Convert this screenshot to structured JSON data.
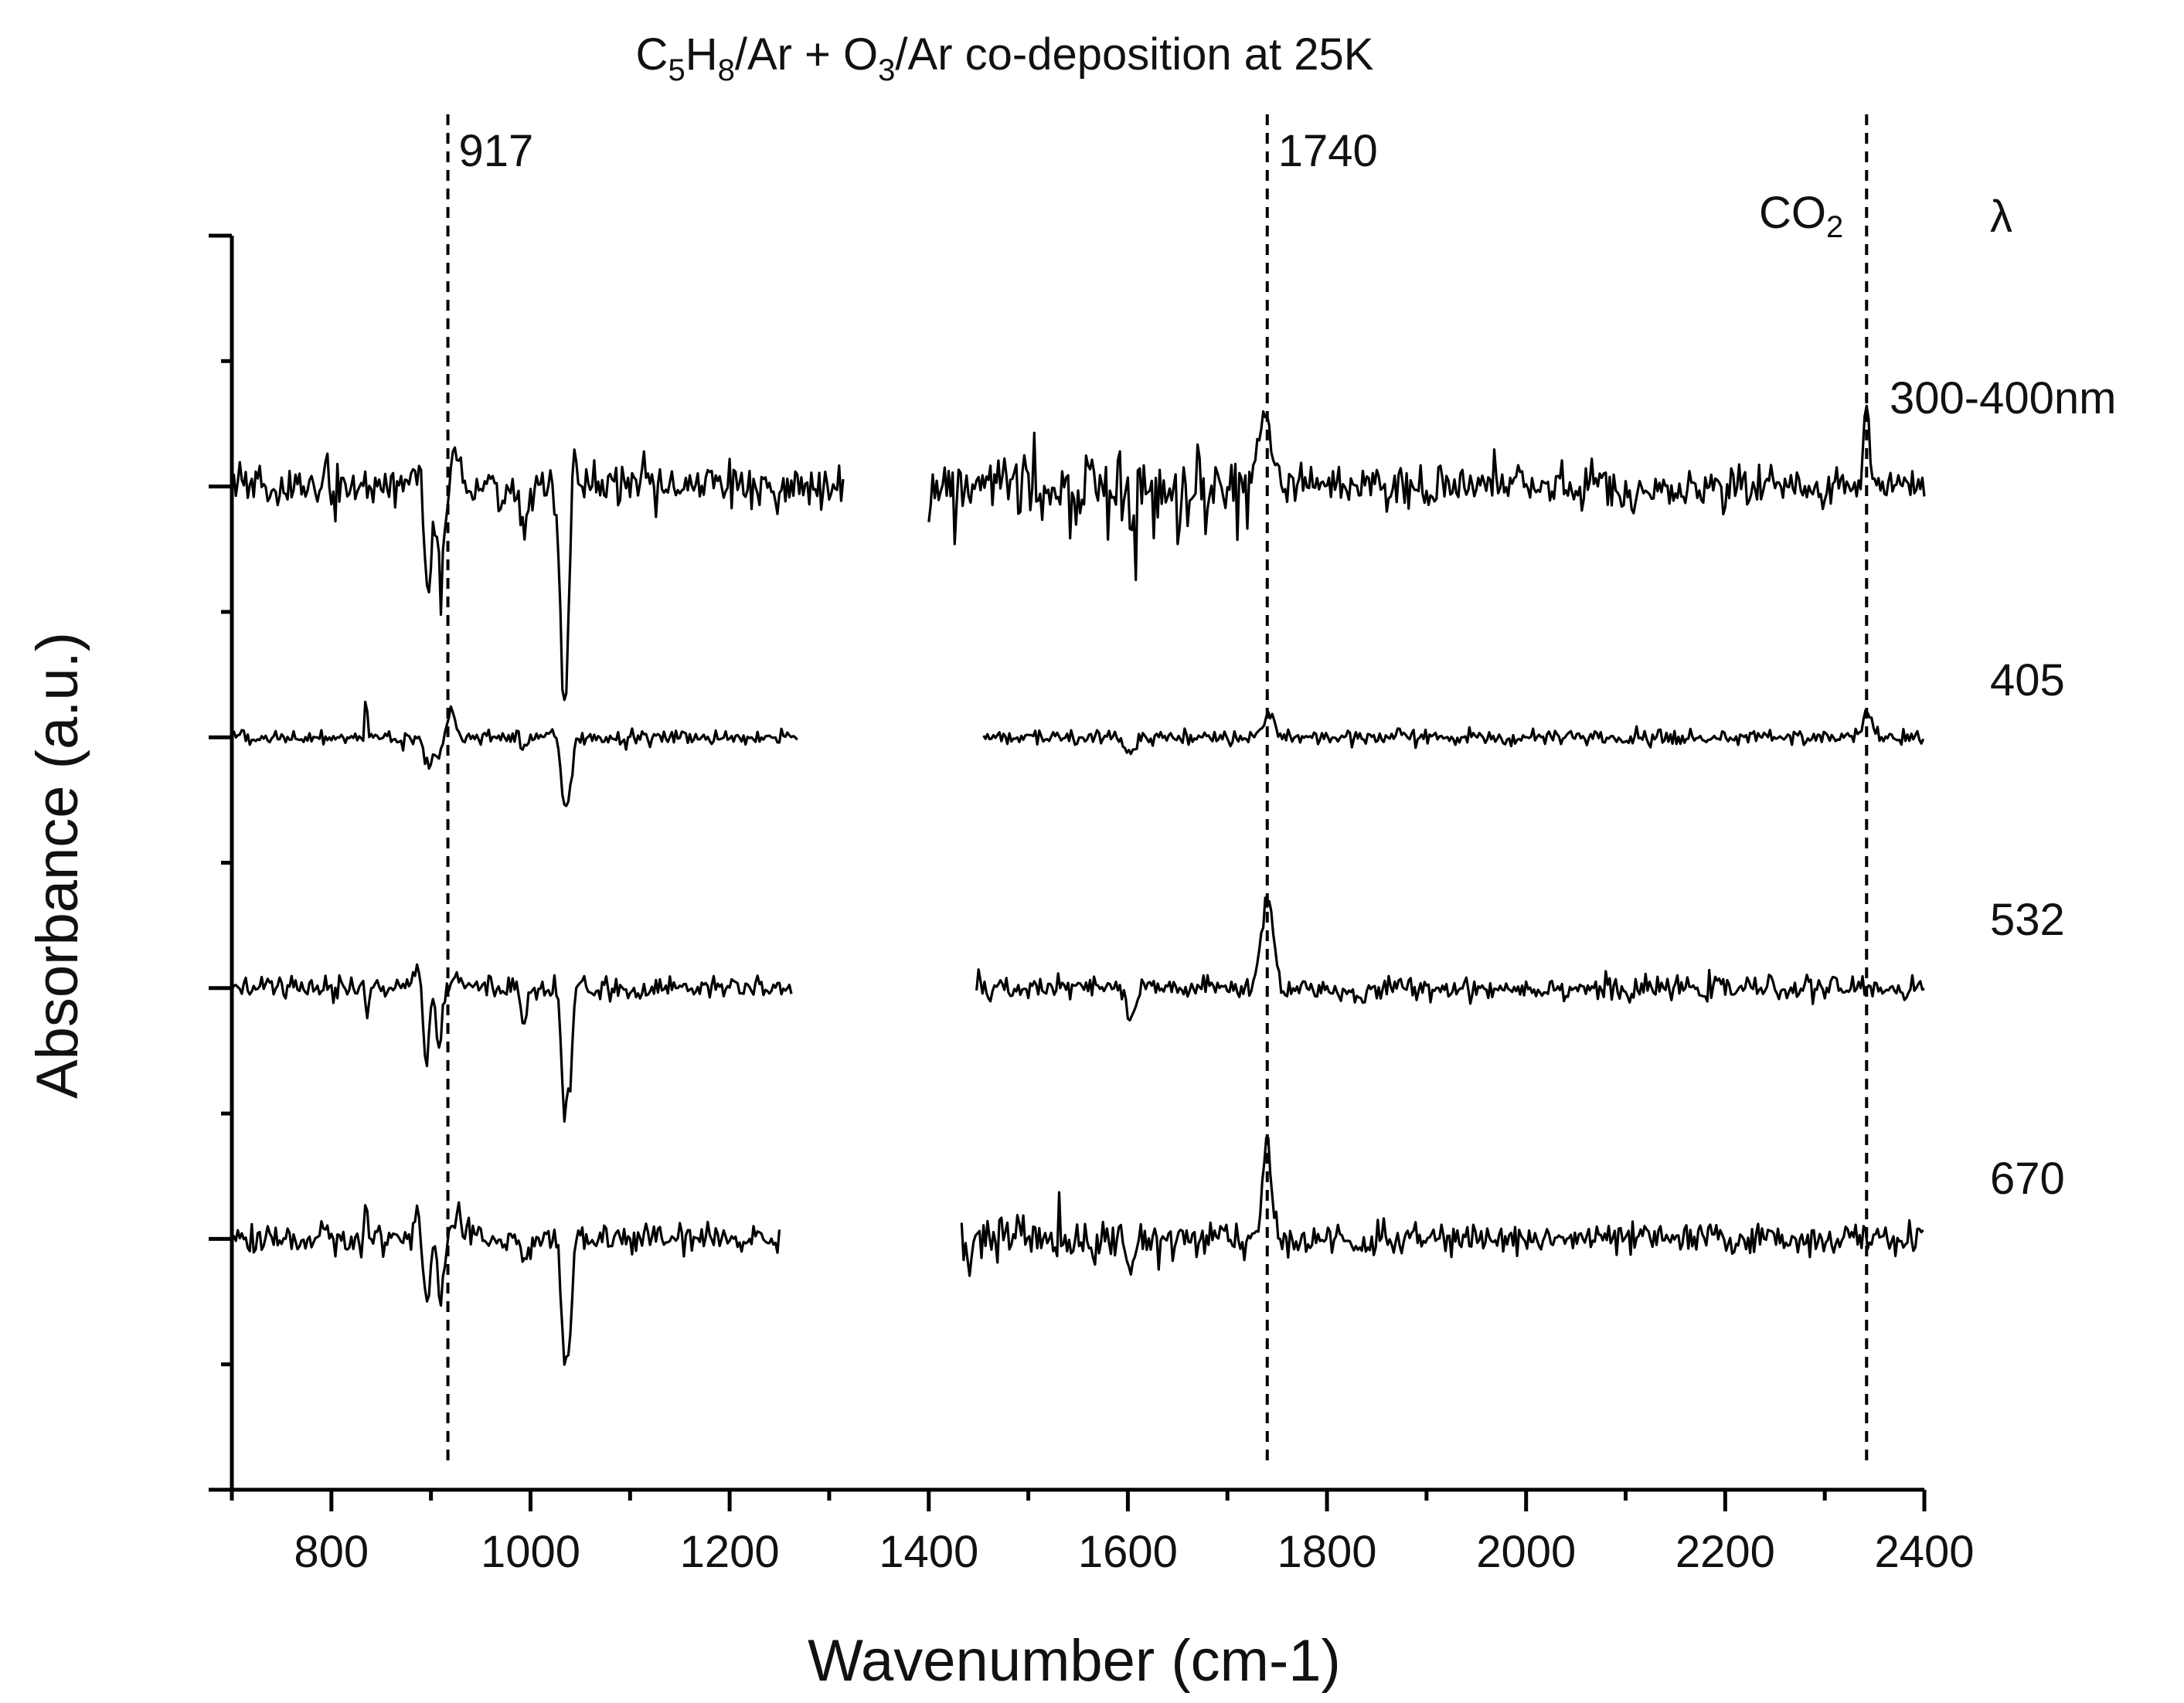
{
  "chart_data": {
    "type": "line",
    "title": {
      "segments": [
        {
          "text": "C",
          "sub": false
        },
        {
          "text": "5",
          "sub": true
        },
        {
          "text": "H",
          "sub": false
        },
        {
          "text": "8",
          "sub": true
        },
        {
          "text": "/Ar + O",
          "sub": false
        },
        {
          "text": "3",
          "sub": true
        },
        {
          "text": "/Ar co-deposition at 25K",
          "sub": false
        }
      ]
    },
    "xlabel": "Wavenumber (cm-1)",
    "ylabel": "Absorbance (a.u.)",
    "xlim": [
      700,
      2400
    ],
    "x_ticks": [
      800,
      1000,
      1200,
      1400,
      1600,
      1800,
      2000,
      2200,
      2400
    ],
    "x_tick_labels": [
      "800",
      "1000",
      "1200",
      "1400",
      "1600",
      "1800",
      "2000",
      "2200",
      "2400"
    ],
    "x_minor_step": 100,
    "ylim": [
      0,
      10
    ],
    "y_major_ticks": [
      0,
      2,
      4,
      6,
      8,
      10
    ],
    "y_minor_ticks": [
      1,
      3,
      5,
      7,
      9
    ],
    "reference_lines": [
      {
        "x": 917,
        "label": "917",
        "label_side": "right"
      },
      {
        "x": 1740,
        "label": "1740",
        "label_side": "right"
      },
      {
        "x": 2342,
        "label": "CO₂",
        "label_parts": [
          {
            "text": "CO",
            "sub": false
          },
          {
            "text": "2",
            "sub": true
          }
        ],
        "label_side": "left"
      }
    ],
    "lambda_header": "λ",
    "noise_seed": 7,
    "series": [
      {
        "name": "300-400nm",
        "baseline": 8,
        "noise": 0.085,
        "segments": [
          [
            700,
            1315
          ],
          [
            1400,
            2400
          ]
        ],
        "extra_noise_range": [
          1400,
          1720,
          0.12
        ],
        "features": [
          {
            "x": 795,
            "amp": 0.35,
            "w": 1
          },
          {
            "x": 888,
            "amp": 0.25,
            "w": 5
          },
          {
            "x": 897,
            "amp": -0.95,
            "w": 3.5
          },
          {
            "x": 910,
            "amp": -0.85,
            "w": 3.5
          },
          {
            "x": 925,
            "amp": 0.28,
            "w": 5
          },
          {
            "x": 993,
            "amp": -0.35,
            "w": 4
          },
          {
            "x": 1034,
            "amp": -1.8,
            "w": 4
          },
          {
            "x": 1044,
            "amp": 0.45,
            "w": 2
          },
          {
            "x": 1603,
            "amp": -0.3,
            "w": 3
          },
          {
            "x": 1652,
            "amp": -0.55,
            "w": 1.5
          },
          {
            "x": 1738,
            "amp": 0.55,
            "w": 7
          },
          {
            "x": 2105,
            "amp": -0.12,
            "w": 8
          },
          {
            "x": 2342,
            "amp": 0.72,
            "w": 2.5
          }
        ]
      },
      {
        "name": "405",
        "baseline": 6,
        "noise": 0.03,
        "segments": [
          [
            700,
            1268
          ],
          [
            1455,
            2400
          ]
        ],
        "features": [
          {
            "x": 835,
            "amp": 0.42,
            "w": 1
          },
          {
            "x": 897,
            "amp": -0.22,
            "w": 4
          },
          {
            "x": 907,
            "amp": -0.15,
            "w": 4
          },
          {
            "x": 920,
            "amp": 0.25,
            "w": 4
          },
          {
            "x": 993,
            "amp": -0.1,
            "w": 3
          },
          {
            "x": 1034,
            "amp": -0.55,
            "w": 3
          },
          {
            "x": 1040,
            "amp": -0.35,
            "w": 2.5
          },
          {
            "x": 1603,
            "amp": -0.13,
            "w": 4
          },
          {
            "x": 1742,
            "amp": 0.18,
            "w": 6
          },
          {
            "x": 2105,
            "amp": -0.03,
            "w": 8
          },
          {
            "x": 2342,
            "amp": 0.2,
            "w": 4
          }
        ]
      },
      {
        "name": "532",
        "baseline": 4,
        "noise": 0.045,
        "segments": [
          [
            700,
            1262
          ],
          [
            1448,
            2400
          ]
        ],
        "features": [
          {
            "x": 835,
            "amp": -0.22,
            "w": 1.5
          },
          {
            "x": 887,
            "amp": 0.22,
            "w": 4
          },
          {
            "x": 895,
            "amp": -0.65,
            "w": 3
          },
          {
            "x": 908,
            "amp": -0.5,
            "w": 3
          },
          {
            "x": 925,
            "amp": 0.12,
            "w": 5
          },
          {
            "x": 993,
            "amp": -0.28,
            "w": 3
          },
          {
            "x": 1034,
            "amp": -0.95,
            "w": 3
          },
          {
            "x": 1040,
            "amp": -0.6,
            "w": 2.5
          },
          {
            "x": 1462,
            "amp": -0.12,
            "w": 2
          },
          {
            "x": 1603,
            "amp": -0.28,
            "w": 4
          },
          {
            "x": 1740,
            "amp": 0.7,
            "w": 6
          },
          {
            "x": 1828,
            "amp": -0.1,
            "w": 10
          },
          {
            "x": 2105,
            "amp": -0.06,
            "w": 6
          }
        ]
      },
      {
        "name": "670",
        "baseline": 2,
        "noise": 0.06,
        "segments": [
          [
            700,
            1250
          ],
          [
            1433,
            2400
          ]
        ],
        "extra_noise_range": [
          1433,
          1700,
          0.06
        ],
        "features": [
          {
            "x": 835,
            "amp": 0.35,
            "w": 1
          },
          {
            "x": 887,
            "amp": 0.22,
            "w": 4
          },
          {
            "x": 896,
            "amp": -0.55,
            "w": 3
          },
          {
            "x": 910,
            "amp": -0.5,
            "w": 3
          },
          {
            "x": 925,
            "amp": 0.15,
            "w": 5
          },
          {
            "x": 993,
            "amp": -0.22,
            "w": 3
          },
          {
            "x": 1034,
            "amp": -0.95,
            "w": 3
          },
          {
            "x": 1040,
            "amp": -0.65,
            "w": 2.5
          },
          {
            "x": 1440,
            "amp": -0.2,
            "w": 2
          },
          {
            "x": 1603,
            "amp": -0.28,
            "w": 3
          },
          {
            "x": 1740,
            "amp": 0.75,
            "w": 4
          },
          {
            "x": 1830,
            "amp": -0.07,
            "w": 8
          }
        ]
      }
    ]
  }
}
